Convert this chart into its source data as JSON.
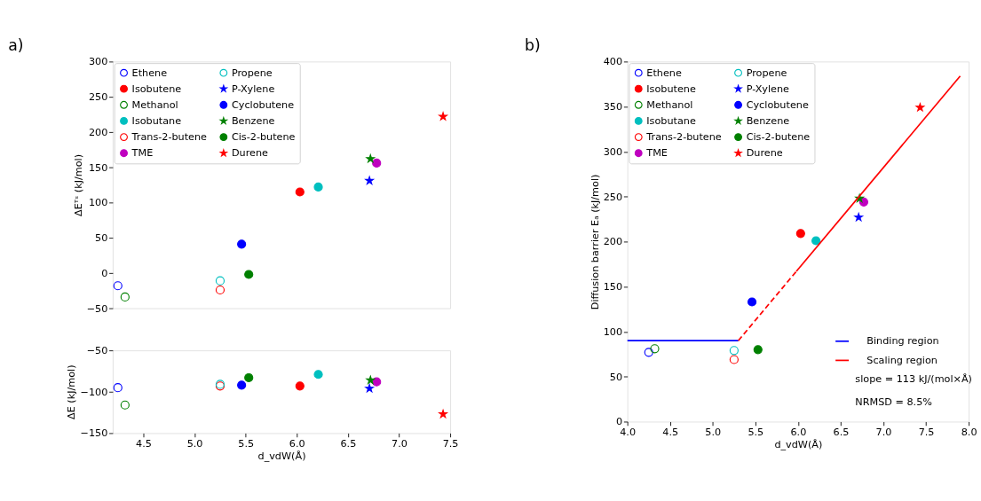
{
  "chart_data": [
    {
      "type": "scatter",
      "title": "a)",
      "ylabel": "ΔEᵀˢ (kJ/mol)",
      "xlim": [
        4.2,
        7.5
      ],
      "ylim": [
        -50,
        300
      ],
      "yticks": [
        -50,
        0,
        50,
        100,
        150,
        200,
        250,
        300
      ],
      "tick_labels": "y",
      "grid": false,
      "legend": "top left",
      "series": [
        {
          "name": "Ethene",
          "color": "#0000ff",
          "marker": "circle-open",
          "x": [
            4.25
          ],
          "values": [
            -18
          ]
        },
        {
          "name": "Methanol",
          "color": "#008000",
          "marker": "circle-open",
          "x": [
            4.32
          ],
          "values": [
            -34
          ]
        },
        {
          "name": "Trans-2-butene",
          "color": "#ff0000",
          "marker": "circle-open",
          "x": [
            5.25
          ],
          "values": [
            -24
          ]
        },
        {
          "name": "Propene",
          "color": "#00bfbf",
          "marker": "circle-open",
          "x": [
            5.25
          ],
          "values": [
            -11
          ]
        },
        {
          "name": "Cyclobutene",
          "color": "#0000ff",
          "marker": "circle",
          "x": [
            5.46
          ],
          "values": [
            41
          ]
        },
        {
          "name": "Cis-2-butene",
          "color": "#008000",
          "marker": "circle",
          "x": [
            5.53
          ],
          "values": [
            -2
          ]
        },
        {
          "name": "Isobutene",
          "color": "#ff0000",
          "marker": "circle",
          "x": [
            6.03
          ],
          "values": [
            115
          ]
        },
        {
          "name": "Isobutane",
          "color": "#00bfbf",
          "marker": "circle",
          "x": [
            6.21
          ],
          "values": [
            122
          ]
        },
        {
          "name": "TME",
          "color": "#bf00bf",
          "marker": "circle",
          "x": [
            6.78
          ],
          "values": [
            156
          ]
        },
        {
          "name": "P-Xylene",
          "color": "#0000ff",
          "marker": "star",
          "x": [
            6.71
          ],
          "values": [
            131
          ]
        },
        {
          "name": "Benzene",
          "color": "#008000",
          "marker": "star",
          "x": [
            6.72
          ],
          "values": [
            162
          ]
        },
        {
          "name": "Durene",
          "color": "#ff0000",
          "marker": "star",
          "x": [
            7.43
          ],
          "values": [
            222
          ]
        }
      ]
    },
    {
      "type": "scatter",
      "xlabel": "d_vdW(Å)",
      "ylabel": "ΔE (kJ/mol)",
      "xlim": [
        4.2,
        7.5
      ],
      "xticks": [
        4.5,
        {
          "value": 5,
          "label": "5.0"
        },
        5.5,
        {
          "value": 6,
          "label": "6.0"
        },
        6.5,
        {
          "value": 7,
          "label": "7.0"
        },
        7.5
      ],
      "ylim": [
        -150,
        -50
      ],
      "yticks": [
        -150,
        -100,
        -50
      ],
      "grid": false,
      "series": [
        {
          "color": "#0000ff",
          "marker": "circle-open",
          "x": [
            4.25
          ],
          "values": [
            -95
          ]
        },
        {
          "color": "#008000",
          "marker": "circle-open",
          "x": [
            4.32
          ],
          "values": [
            -116
          ]
        },
        {
          "color": "#ff0000",
          "marker": "circle-open",
          "x": [
            5.25
          ],
          "values": [
            -93
          ]
        },
        {
          "color": "#00bfbf",
          "marker": "circle-open",
          "x": [
            5.25
          ],
          "values": [
            -91
          ]
        },
        {
          "color": "#0000ff",
          "marker": "circle",
          "x": [
            5.46
          ],
          "values": [
            -92
          ]
        },
        {
          "color": "#008000",
          "marker": "circle",
          "x": [
            5.53
          ],
          "values": [
            -83
          ]
        },
        {
          "color": "#ff0000",
          "marker": "circle",
          "x": [
            6.03
          ],
          "values": [
            -93
          ]
        },
        {
          "color": "#00bfbf",
          "marker": "circle",
          "x": [
            6.21
          ],
          "values": [
            -79
          ]
        },
        {
          "color": "#bf00bf",
          "marker": "circle",
          "x": [
            6.78
          ],
          "values": [
            -88
          ]
        },
        {
          "color": "#0000ff",
          "marker": "star",
          "x": [
            6.71
          ],
          "values": [
            -96
          ]
        },
        {
          "color": "#008000",
          "marker": "star",
          "x": [
            6.72
          ],
          "values": [
            -86
          ]
        },
        {
          "color": "#ff0000",
          "marker": "star",
          "x": [
            7.43
          ],
          "values": [
            -127
          ]
        }
      ]
    },
    {
      "type": "scatter",
      "title": "b)",
      "xlabel": "d_vdW(Å)",
      "ylabel": "Diffusion barrier Eₐ (kJ/mol)",
      "xlim": [
        4,
        8
      ],
      "xticks": [
        {
          "value": 4,
          "label": "4.0"
        },
        4.5,
        {
          "value": 5,
          "label": "5.0"
        },
        5.5,
        {
          "value": 6,
          "label": "6.0"
        },
        6.5,
        {
          "value": 7,
          "label": "7.0"
        },
        7.5,
        {
          "value": 8,
          "label": "8.0"
        }
      ],
      "ylim": [
        0,
        400
      ],
      "yticks": [
        0,
        50,
        100,
        150,
        200,
        250,
        300,
        350,
        400
      ],
      "grid": false,
      "legend": "top left",
      "annotations": [
        "slope = 113 kJ/(mol×Å)",
        "NRMSD = 8.5%"
      ],
      "series": [
        {
          "name": "Ethene",
          "color": "#0000ff",
          "marker": "circle-open",
          "x": [
            4.25
          ],
          "values": [
            77
          ]
        },
        {
          "name": "Methanol",
          "color": "#008000",
          "marker": "circle-open",
          "x": [
            4.32
          ],
          "values": [
            81
          ]
        },
        {
          "name": "Trans-2-butene",
          "color": "#ff0000",
          "marker": "circle-open",
          "x": [
            5.25
          ],
          "values": [
            69
          ]
        },
        {
          "name": "Propene",
          "color": "#00bfbf",
          "marker": "circle-open",
          "x": [
            5.25
          ],
          "values": [
            79
          ]
        },
        {
          "name": "Cyclobutene",
          "color": "#0000ff",
          "marker": "circle",
          "x": [
            5.46
          ],
          "values": [
            133
          ]
        },
        {
          "name": "Cis-2-butene",
          "color": "#008000",
          "marker": "circle",
          "x": [
            5.53
          ],
          "values": [
            80
          ]
        },
        {
          "name": "Isobutene",
          "color": "#ff0000",
          "marker": "circle",
          "x": [
            6.03
          ],
          "values": [
            209
          ]
        },
        {
          "name": "Isobutane",
          "color": "#00bfbf",
          "marker": "circle",
          "x": [
            6.21
          ],
          "values": [
            201
          ]
        },
        {
          "name": "TME",
          "color": "#bf00bf",
          "marker": "circle",
          "x": [
            6.77
          ],
          "values": [
            244
          ]
        },
        {
          "name": "P-Xylene",
          "color": "#0000ff",
          "marker": "star",
          "x": [
            6.71
          ],
          "values": [
            227
          ]
        },
        {
          "name": "Benzene",
          "color": "#008000",
          "marker": "star",
          "x": [
            6.72
          ],
          "values": [
            248
          ]
        },
        {
          "name": "Durene",
          "color": "#ff0000",
          "marker": "star",
          "x": [
            7.43
          ],
          "values": [
            349
          ]
        },
        {
          "name": "Binding region",
          "type": "line",
          "line_style": "solid",
          "color": "#0000ff",
          "x": [
            4.0,
            5.3
          ],
          "values": [
            90,
            90
          ]
        },
        {
          "type": "line",
          "line_style": "dashed",
          "color": "#ff0000",
          "x": [
            5.3,
            5.98
          ],
          "values": [
            90,
            167
          ]
        },
        {
          "name": "Scaling region",
          "type": "line",
          "line_style": "solid",
          "color": "#ff0000",
          "x": [
            5.98,
            7.9
          ],
          "values": [
            167,
            384
          ]
        }
      ]
    }
  ]
}
